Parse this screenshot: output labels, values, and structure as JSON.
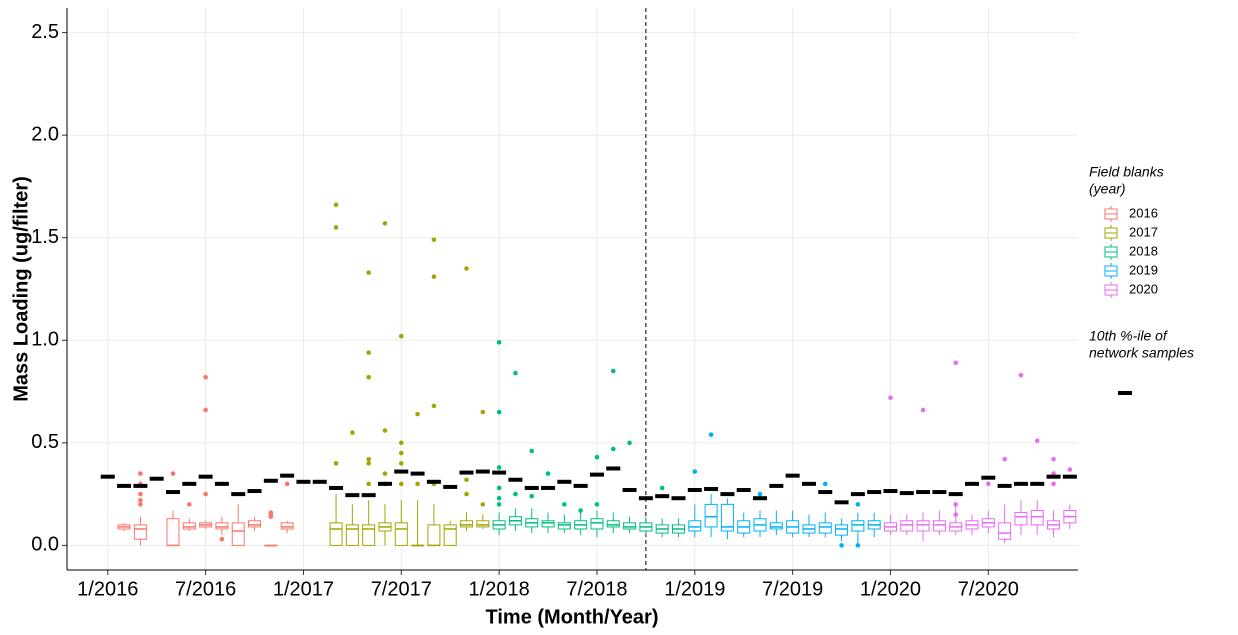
{
  "chart_data": {
    "type": "box",
    "x_label": "Time (Month/Year)",
    "y_label": "Mass Loading (ug/filter)",
    "legend_title": [
      "Field blanks",
      "(year)"
    ],
    "reference_label": [
      "10th %-ile of",
      "network samples"
    ],
    "xlim": [
      "2015-11",
      "2020-12"
    ],
    "ylim": [
      -0.12,
      2.62
    ],
    "yticks": [
      {
        "value": 0,
        "label": "0.0"
      },
      {
        "value": 0.5,
        "label": "0.5"
      },
      {
        "value": 1,
        "label": "1.0"
      },
      {
        "value": 1.5,
        "label": "1.5"
      },
      {
        "value": 2,
        "label": "2.0"
      },
      {
        "value": 2.5,
        "label": "2.5"
      }
    ],
    "xticks": [
      {
        "value": "2016-01",
        "label": "1/2016"
      },
      {
        "value": "2016-07",
        "label": "7/2016"
      },
      {
        "value": "2017-01",
        "label": "1/2017"
      },
      {
        "value": "2017-07",
        "label": "7/2017"
      },
      {
        "value": "2018-01",
        "label": "1/2018"
      },
      {
        "value": "2018-07",
        "label": "7/2018"
      },
      {
        "value": "2019-01",
        "label": "1/2019"
      },
      {
        "value": "2019-07",
        "label": "7/2019"
      },
      {
        "value": "2020-01",
        "label": "1/2020"
      },
      {
        "value": "2020-07",
        "label": "7/2020"
      }
    ],
    "grid": true,
    "vline": "2018-10",
    "reference": {
      "color": "#000000",
      "x": [
        "2016-01",
        "2016-02",
        "2016-03",
        "2016-04",
        "2016-05",
        "2016-06",
        "2016-07",
        "2016-08",
        "2016-09",
        "2016-10",
        "2016-11",
        "2016-12",
        "2017-01",
        "2017-02",
        "2017-03",
        "2017-04",
        "2017-05",
        "2017-06",
        "2017-07",
        "2017-08",
        "2017-09",
        "2017-10",
        "2017-11",
        "2017-12",
        "2018-01",
        "2018-02",
        "2018-03",
        "2018-04",
        "2018-05",
        "2018-06",
        "2018-07",
        "2018-08",
        "2018-09",
        "2018-10",
        "2018-11",
        "2018-12",
        "2019-01",
        "2019-02",
        "2019-03",
        "2019-04",
        "2019-05",
        "2019-06",
        "2019-07",
        "2019-08",
        "2019-09",
        "2019-10",
        "2019-11",
        "2019-12",
        "2020-01",
        "2020-02",
        "2020-03",
        "2020-04",
        "2020-05",
        "2020-06",
        "2020-07",
        "2020-08",
        "2020-09",
        "2020-10",
        "2020-11",
        "2020-12"
      ],
      "values": [
        0.335,
        0.29,
        0.29,
        0.325,
        0.26,
        0.3,
        0.335,
        0.3,
        0.25,
        0.265,
        0.315,
        0.34,
        0.31,
        0.31,
        0.28,
        0.245,
        0.245,
        0.3,
        0.36,
        0.35,
        0.31,
        0.285,
        0.355,
        0.36,
        0.355,
        0.32,
        0.28,
        0.28,
        0.31,
        0.29,
        0.345,
        0.375,
        0.27,
        0.23,
        0.24,
        0.23,
        0.27,
        0.275,
        0.25,
        0.27,
        0.23,
        0.29,
        0.34,
        0.3,
        0.26,
        0.21,
        0.25,
        0.26,
        0.265,
        0.255,
        0.26,
        0.26,
        0.25,
        0.3,
        0.33,
        0.29,
        0.3,
        0.3,
        0.335,
        0.335
      ]
    },
    "series": [
      {
        "name": "2016",
        "color": "#F8766D",
        "x": [
          "2016-02",
          "2016-03",
          "2016-05",
          "2016-06",
          "2016-07",
          "2016-08",
          "2016-09",
          "2016-10",
          "2016-11",
          "2016-12"
        ],
        "low": [
          0.07,
          0,
          0,
          0.07,
          0.08,
          0.05,
          0,
          0.07,
          0,
          0.06
        ],
        "q1": [
          0.08,
          0.03,
          0,
          0.08,
          0.09,
          0.08,
          0,
          0.09,
          0,
          0.08
        ],
        "median": [
          0.09,
          0.08,
          0,
          0.09,
          0.1,
          0.09,
          0.07,
          0.1,
          0,
          0.09
        ],
        "q3": [
          0.1,
          0.1,
          0.13,
          0.11,
          0.11,
          0.11,
          0.11,
          0.12,
          0,
          0.11
        ],
        "high": [
          0.11,
          0.14,
          0.17,
          0.13,
          0.12,
          0.14,
          0.2,
          0.14,
          0,
          0.12
        ],
        "outliers": [
          [],
          [
            0.2,
            0.22,
            0.25,
            0.3,
            0.35
          ],
          [
            0.35
          ],
          [
            0.2
          ],
          [
            0.25,
            0.66,
            0.82
          ],
          [
            0.03,
            0.3
          ],
          [],
          [],
          [
            0.14,
            0.15,
            0.16
          ],
          [
            0.3
          ]
        ]
      },
      {
        "name": "2017",
        "color": "#A3A500",
        "x": [
          "2017-03",
          "2017-04",
          "2017-05",
          "2017-06",
          "2017-07",
          "2017-08",
          "2017-09",
          "2017-10",
          "2017-11",
          "2017-12"
        ],
        "low": [
          0,
          0,
          0,
          0,
          0,
          0,
          0,
          0,
          0.07,
          0.08
        ],
        "q1": [
          0,
          0,
          0,
          0.07,
          0,
          0,
          0,
          0,
          0.09,
          0.09
        ],
        "median": [
          0.08,
          0.08,
          0.08,
          0.09,
          0.08,
          0,
          0,
          0.08,
          0.1,
          0.1
        ],
        "q3": [
          0.11,
          0.1,
          0.1,
          0.11,
          0.11,
          0,
          0.1,
          0.1,
          0.12,
          0.12
        ],
        "high": [
          0.25,
          0.2,
          0.22,
          0.2,
          0.22,
          0.22,
          0.2,
          0.12,
          0.16,
          0.15
        ],
        "outliers": [
          [
            0.4,
            1.55,
            1.66
          ],
          [
            0.55
          ],
          [
            0.3,
            0.4,
            0.42,
            0.82,
            0.94,
            1.33
          ],
          [
            0.3,
            0.35,
            0.56,
            1.57
          ],
          [
            0.3,
            0.4,
            0.45,
            0.5,
            1.02
          ],
          [
            0.3,
            0.64
          ],
          [
            0.3,
            0.68,
            1.31,
            1.49
          ],
          [],
          [
            0.25,
            0.32,
            1.35
          ],
          [
            0.2,
            0.65
          ]
        ]
      },
      {
        "name": "2018",
        "color": "#00BF7D",
        "x": [
          "2018-01",
          "2018-02",
          "2018-03",
          "2018-04",
          "2018-05",
          "2018-06",
          "2018-07",
          "2018-08",
          "2018-09",
          "2018-10",
          "2018-11",
          "2018-12"
        ],
        "low": [
          0.05,
          0.07,
          0.06,
          0.06,
          0.06,
          0.05,
          0.04,
          0.06,
          0.06,
          0.05,
          0.04,
          0.04
        ],
        "q1": [
          0.08,
          0.1,
          0.09,
          0.09,
          0.08,
          0.08,
          0.08,
          0.09,
          0.08,
          0.07,
          0.06,
          0.06
        ],
        "median": [
          0.1,
          0.12,
          0.11,
          0.11,
          0.1,
          0.1,
          0.11,
          0.1,
          0.09,
          0.09,
          0.08,
          0.08
        ],
        "q3": [
          0.12,
          0.14,
          0.13,
          0.12,
          0.11,
          0.12,
          0.13,
          0.12,
          0.11,
          0.11,
          0.1,
          0.1
        ],
        "high": [
          0.16,
          0.18,
          0.18,
          0.16,
          0.15,
          0.16,
          0.17,
          0.16,
          0.14,
          0.14,
          0.13,
          0.13
        ],
        "outliers": [
          [
            0.2,
            0.23,
            0.28,
            0.38,
            0.65,
            0.99
          ],
          [
            0.25,
            0.84
          ],
          [
            0.24,
            0.46
          ],
          [
            0.35
          ],
          [
            0.2
          ],
          [
            0.17
          ],
          [
            0.2,
            0.43
          ],
          [
            0.47,
            0.85
          ],
          [
            0.5
          ],
          [],
          [
            0.28
          ],
          []
        ]
      },
      {
        "name": "2019",
        "color": "#00B0F6",
        "x": [
          "2019-01",
          "2019-02",
          "2019-03",
          "2019-04",
          "2019-05",
          "2019-06",
          "2019-07",
          "2019-08",
          "2019-09",
          "2019-10",
          "2019-11",
          "2019-12"
        ],
        "low": [
          0.04,
          0.04,
          0.03,
          0.04,
          0.04,
          0.05,
          0.04,
          0.04,
          0.04,
          0.02,
          0.01,
          0.04
        ],
        "q1": [
          0.07,
          0.09,
          0.07,
          0.06,
          0.07,
          0.08,
          0.06,
          0.06,
          0.06,
          0.05,
          0.07,
          0.08
        ],
        "median": [
          0.09,
          0.14,
          0.09,
          0.09,
          0.1,
          0.09,
          0.09,
          0.08,
          0.09,
          0.08,
          0.1,
          0.1
        ],
        "q3": [
          0.12,
          0.2,
          0.2,
          0.12,
          0.13,
          0.11,
          0.12,
          0.1,
          0.11,
          0.1,
          0.12,
          0.12
        ],
        "high": [
          0.2,
          0.25,
          0.23,
          0.16,
          0.17,
          0.17,
          0.17,
          0.15,
          0.16,
          0.13,
          0.16,
          0.16
        ],
        "outliers": [
          [
            0.36
          ],
          [
            0.54
          ],
          [],
          [],
          [
            0.25
          ],
          [],
          [],
          [],
          [
            0.3
          ],
          [
            0
          ],
          [
            0,
            0.2
          ],
          []
        ]
      },
      {
        "name": "2020",
        "color": "#E76BF3",
        "x": [
          "2020-01",
          "2020-02",
          "2020-03",
          "2020-04",
          "2020-05",
          "2020-06",
          "2020-07",
          "2020-08",
          "2020-09",
          "2020-10",
          "2020-11",
          "2020-12"
        ],
        "low": [
          0.05,
          0.05,
          0.02,
          0.05,
          0.05,
          0.05,
          0.06,
          0.01,
          0.05,
          0.05,
          0.04,
          0.08
        ],
        "q1": [
          0.07,
          0.07,
          0.07,
          0.07,
          0.07,
          0.08,
          0.09,
          0.03,
          0.1,
          0.1,
          0.08,
          0.11
        ],
        "median": [
          0.09,
          0.1,
          0.1,
          0.1,
          0.09,
          0.1,
          0.11,
          0.06,
          0.14,
          0.14,
          0.1,
          0.14
        ],
        "q3": [
          0.11,
          0.12,
          0.12,
          0.12,
          0.11,
          0.12,
          0.13,
          0.11,
          0.16,
          0.17,
          0.12,
          0.17
        ],
        "high": [
          0.15,
          0.15,
          0.16,
          0.17,
          0.2,
          0.15,
          0.17,
          0.2,
          0.22,
          0.22,
          0.17,
          0.2
        ],
        "outliers": [
          [
            0.72
          ],
          [],
          [
            0.66
          ],
          [],
          [
            0.15,
            0.2,
            0.89
          ],
          [],
          [
            0.3
          ],
          [
            0.42
          ],
          [
            0.83
          ],
          [
            0.51
          ],
          [
            0.3,
            0.35,
            0.42
          ],
          [
            0.37
          ]
        ]
      }
    ]
  }
}
